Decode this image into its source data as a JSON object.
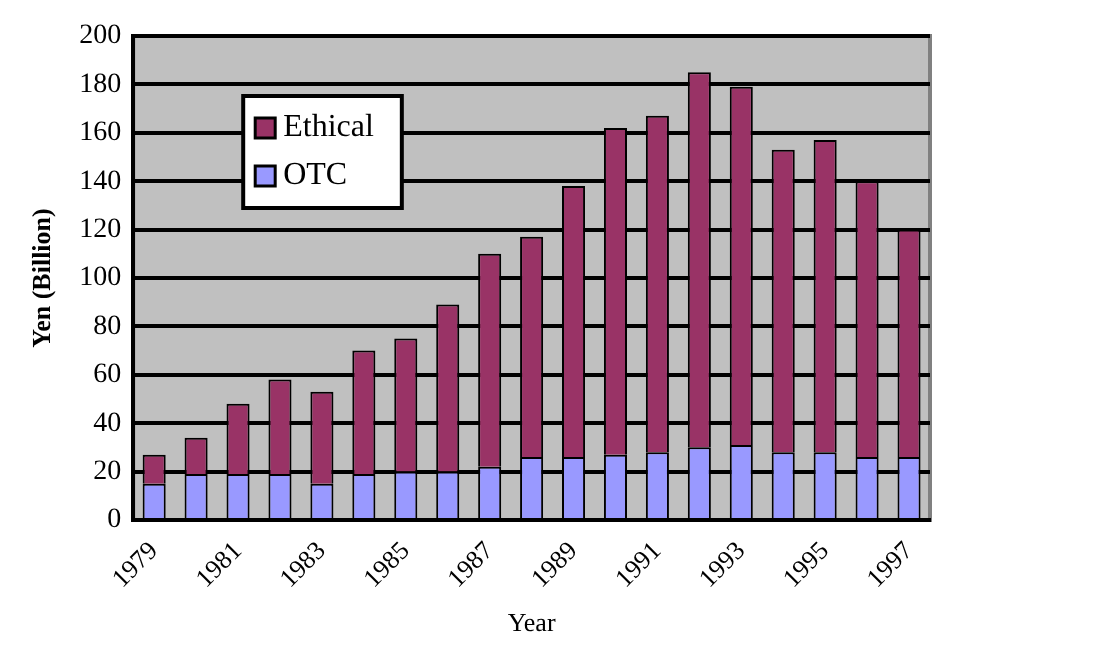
{
  "chart_data": {
    "type": "bar",
    "stacked": true,
    "xlabel": "Year",
    "ylabel": "Yen (Billion)",
    "categories": [
      "1979",
      null,
      "1981",
      null,
      "1983",
      null,
      "1985",
      null,
      "1987",
      null,
      "1989",
      null,
      "1991",
      null,
      "1993",
      null,
      "1995",
      null,
      "1997"
    ],
    "series": [
      {
        "name": "OTC",
        "color": "#9999ff",
        "values": [
          15,
          19,
          19,
          19,
          15,
          19,
          20,
          20,
          22,
          26,
          26,
          27,
          28,
          30,
          31,
          28,
          28,
          26,
          26
        ]
      },
      {
        "name": "Ethical",
        "color": "#993366",
        "values": [
          12,
          15,
          29,
          39,
          38,
          51,
          55,
          69,
          88,
          91,
          112,
          135,
          139,
          155,
          148,
          125,
          129,
          114,
          94
        ]
      }
    ],
    "ylim": [
      0,
      200
    ],
    "yticks": [
      0,
      20,
      40,
      60,
      80,
      100,
      120,
      140,
      160,
      180,
      200
    ],
    "grid": "y",
    "legend": "top left"
  }
}
